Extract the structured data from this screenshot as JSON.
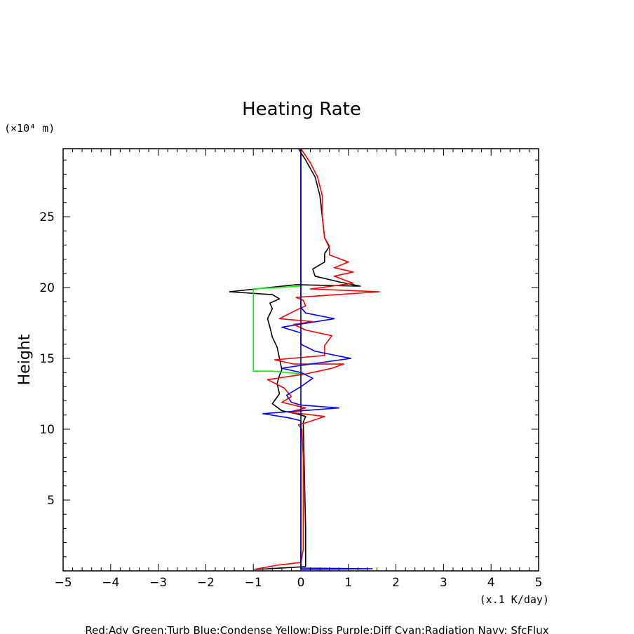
{
  "chart_data": {
    "type": "line",
    "title": "Heating Rate",
    "xlabel": "",
    "ylabel": "Height",
    "y_unit": "(×10⁴ m)",
    "x_unit": "(x.1 K/day)",
    "xlim": [
      -5,
      5
    ],
    "ylim": [
      0,
      29.8
    ],
    "x_ticks": [
      -5,
      -4,
      -3,
      -2,
      -1,
      0,
      1,
      2,
      3,
      4,
      5
    ],
    "y_ticks": [
      5,
      10,
      15,
      20,
      25
    ],
    "grid": false,
    "legend_text": "Red:Adv  Green:Turb  Blue:Condense  Yellow:Diss  Purple:Diff  Cyan:Radiation  Navy: SfcFlux",
    "series": [
      {
        "color": "#000000",
        "points": [
          [
            -0.95,
            0.1
          ],
          [
            0.1,
            0.3
          ],
          [
            0.1,
            3
          ],
          [
            0.08,
            6
          ],
          [
            0.06,
            9
          ],
          [
            0.05,
            10.5
          ],
          [
            0.1,
            10.9
          ],
          [
            -0.1,
            11.1
          ],
          [
            -0.4,
            11.3
          ],
          [
            -0.6,
            11.8
          ],
          [
            -0.45,
            12.5
          ],
          [
            -0.5,
            13.2
          ],
          [
            -0.45,
            13.8
          ],
          [
            -0.4,
            14.2
          ],
          [
            -0.45,
            15
          ],
          [
            -0.5,
            15.8
          ],
          [
            -0.6,
            16.5
          ],
          [
            -0.65,
            17.2
          ],
          [
            -0.7,
            17.8
          ],
          [
            -0.6,
            18.5
          ],
          [
            -0.65,
            18.9
          ],
          [
            -0.45,
            19.2
          ],
          [
            -0.6,
            19.5
          ],
          [
            -1.5,
            19.7
          ],
          [
            -0.1,
            20.2
          ],
          [
            1.25,
            20.1
          ],
          [
            0.8,
            20.4
          ],
          [
            0.3,
            20.8
          ],
          [
            0.25,
            21.3
          ],
          [
            0.5,
            21.8
          ],
          [
            0.5,
            22.4
          ],
          [
            0.6,
            22.9
          ],
          [
            0.5,
            23.5
          ],
          [
            0.45,
            25
          ],
          [
            0.4,
            26.5
          ],
          [
            0.3,
            27.8
          ],
          [
            0.1,
            29
          ],
          [
            -0.05,
            29.8
          ]
        ]
      },
      {
        "color": "#ff0000",
        "points": [
          [
            -1.0,
            0.1
          ],
          [
            -0.5,
            0.4
          ],
          [
            0.0,
            0.6
          ],
          [
            0.05,
            1.5
          ],
          [
            0.05,
            4
          ],
          [
            0.05,
            8
          ],
          [
            0.02,
            10
          ],
          [
            -0.05,
            10.3
          ],
          [
            0.15,
            10.5
          ],
          [
            0.5,
            10.9
          ],
          [
            -0.25,
            11.2
          ],
          [
            0.1,
            11.5
          ],
          [
            -0.4,
            11.9
          ],
          [
            -0.2,
            12.3
          ],
          [
            -0.35,
            12.9
          ],
          [
            -0.7,
            13.5
          ],
          [
            0.1,
            13.9
          ],
          [
            0.65,
            14.3
          ],
          [
            0.9,
            14.6
          ],
          [
            -0.15,
            14.6
          ],
          [
            -0.55,
            14.9
          ],
          [
            0.5,
            15.2
          ],
          [
            0.5,
            15.9
          ],
          [
            0.65,
            16.6
          ],
          [
            0.1,
            17.0
          ],
          [
            -0.15,
            17.4
          ],
          [
            0.25,
            17.6
          ],
          [
            -0.45,
            17.8
          ],
          [
            -0.1,
            18.4
          ],
          [
            0.1,
            18.7
          ],
          [
            0.05,
            19.1
          ],
          [
            -0.1,
            19.3
          ],
          [
            1.65,
            19.7
          ],
          [
            0.2,
            19.9
          ],
          [
            1.1,
            20.3
          ],
          [
            0.7,
            20.8
          ],
          [
            1.1,
            21.1
          ],
          [
            0.7,
            21.4
          ],
          [
            1.0,
            21.8
          ],
          [
            0.6,
            22.3
          ],
          [
            0.6,
            22.8
          ],
          [
            0.5,
            23.5
          ],
          [
            0.45,
            25
          ],
          [
            0.45,
            26.5
          ],
          [
            0.35,
            27.8
          ],
          [
            0.2,
            28.8
          ],
          [
            0.0,
            29.8
          ]
        ]
      },
      {
        "color": "#00ff00",
        "points": [
          [
            0.0,
            13.9
          ],
          [
            -0.6,
            14.1
          ],
          [
            -1.0,
            14.1
          ],
          [
            -1.0,
            19.9
          ],
          [
            0.0,
            20.1
          ]
        ]
      },
      {
        "color": "#0000ff",
        "points": [
          [
            0.0,
            0.1
          ],
          [
            1.5,
            0.15
          ],
          [
            0.0,
            0.2
          ],
          [
            0.0,
            10.6
          ],
          [
            -0.25,
            10.8
          ],
          [
            -0.8,
            11.1
          ],
          [
            0.8,
            11.5
          ],
          [
            0.0,
            11.7
          ],
          [
            -0.2,
            11.9
          ],
          [
            -0.3,
            12.4
          ],
          [
            0.0,
            13.0
          ],
          [
            0.25,
            13.6
          ],
          [
            0.0,
            14.0
          ],
          [
            -0.4,
            14.3
          ],
          [
            0.0,
            14.5
          ],
          [
            1.05,
            15.0
          ],
          [
            0.3,
            15.5
          ],
          [
            0.0,
            16.0
          ],
          [
            0.0,
            16.8
          ],
          [
            -0.4,
            17.2
          ],
          [
            0.7,
            17.8
          ],
          [
            0.1,
            18.2
          ],
          [
            0.0,
            18.6
          ],
          [
            0.0,
            29.8
          ]
        ]
      },
      {
        "color": "#000080",
        "points": [
          [
            0.0,
            0.1
          ],
          [
            0.0,
            29.8
          ]
        ]
      }
    ]
  }
}
